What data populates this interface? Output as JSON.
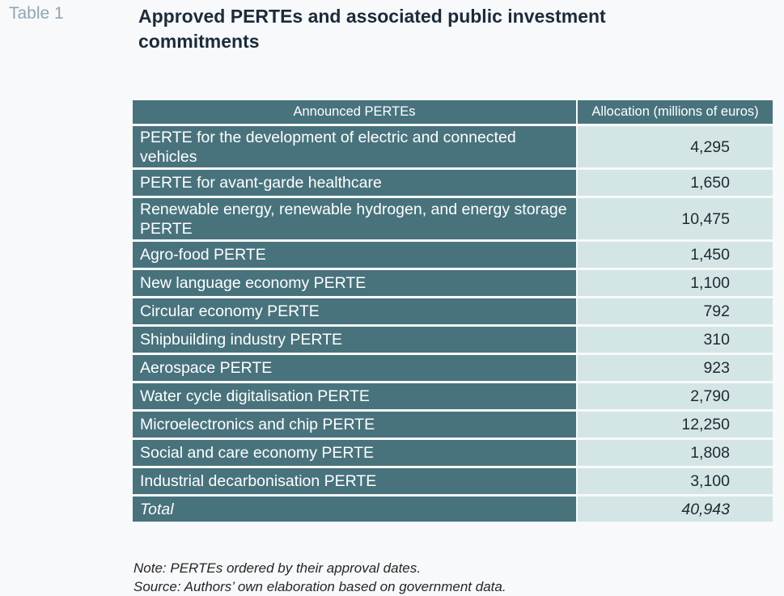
{
  "table_label": "Table 1",
  "title": "Approved PERTEs and associated public investment commitments",
  "columns": [
    "Announced PERTEs",
    "Allocation (millions of euros)"
  ],
  "rows": [
    {
      "name": "PERTE for the development of electric and connected vehicles",
      "value": "4,295"
    },
    {
      "name": "PERTE for avant-garde healthcare",
      "value": "1,650"
    },
    {
      "name": "Renewable energy, renewable hydrogen, and energy storage PERTE",
      "value": "10,475"
    },
    {
      "name": "Agro-food PERTE",
      "value": "1,450"
    },
    {
      "name": "New language economy PERTE",
      "value": "1,100"
    },
    {
      "name": "Circular economy PERTE",
      "value": "792"
    },
    {
      "name": "Shipbuilding industry PERTE",
      "value": "310"
    },
    {
      "name": "Aerospace PERTE",
      "value": "923"
    },
    {
      "name": "Water cycle digitalisation PERTE",
      "value": "2,790"
    },
    {
      "name": "Microelectronics and chip PERTE",
      "value": "12,250"
    },
    {
      "name": "Social and care economy PERTE",
      "value": "1,808"
    },
    {
      "name": "Industrial decarbonisation PERTE",
      "value": "3,100"
    }
  ],
  "total": {
    "name": "Total",
    "value": "40,943"
  },
  "notes": [
    "Note: PERTEs ordered by their approval dates.",
    "Source: Authors’ own elaboration based on government data."
  ],
  "colors": {
    "header_bg": "#48737d",
    "value_bg": "#d4e5e6",
    "label": "#8ea7b6"
  }
}
